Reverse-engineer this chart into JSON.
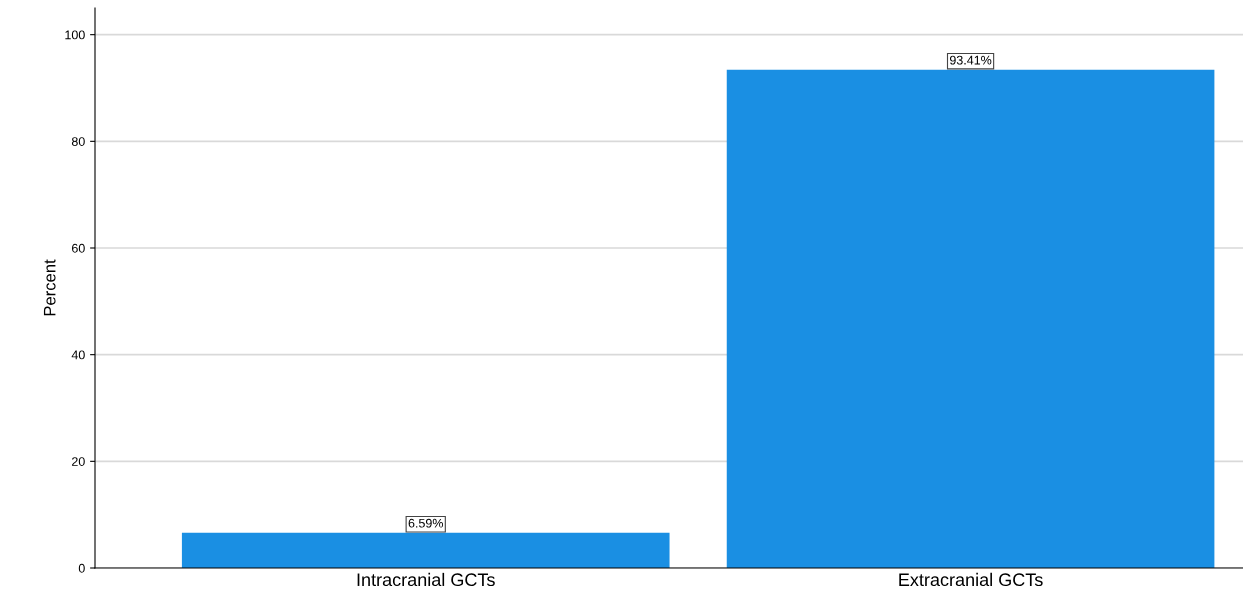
{
  "chart_data": {
    "type": "bar",
    "ylabel": "Percent",
    "categories": [
      "Intracranial GCTs",
      "Extracranial GCTs"
    ],
    "values": [
      6.59,
      93.41
    ],
    "value_labels": [
      "6.59%",
      "93.41%"
    ],
    "color": "#1a8fe3",
    "ylim": [
      0,
      105
    ],
    "yticks": [
      0,
      20,
      40,
      60,
      80,
      100
    ],
    "grid": "y"
  }
}
